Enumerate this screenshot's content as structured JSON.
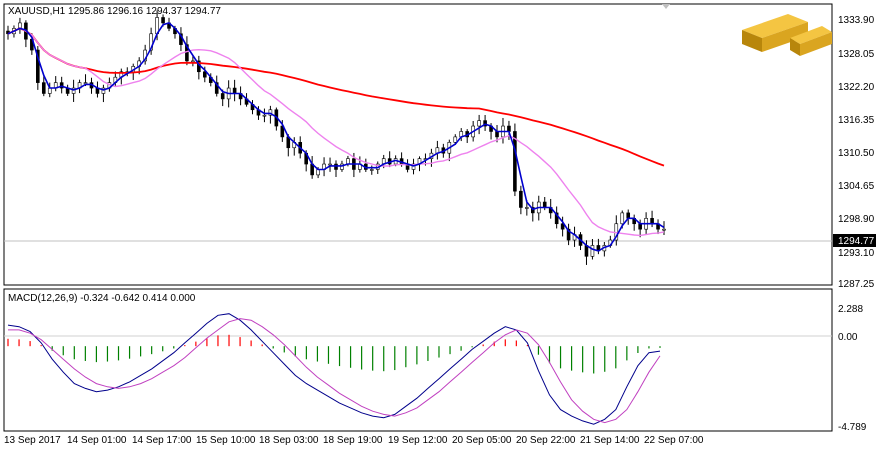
{
  "main": {
    "header": "XAUUSD,H1  1295.86 1296.16 1294.37 1294.77",
    "price_axis": [
      "1333.90",
      "1328.05",
      "1322.20",
      "1316.35",
      "1310.50",
      "1304.65",
      "1298.90",
      "1293.10",
      "1287.25"
    ],
    "current_price": "1294.77"
  },
  "macd": {
    "header": "MACD(12,26,9) -0.324 -0.642 0.414 0.000",
    "axis": [
      "2.288",
      "0.00",
      "-4.789"
    ]
  },
  "time_axis": [
    "13 Sep 2017",
    "14 Sep 01:00",
    "14 Sep 17:00",
    "15 Sep 10:00",
    "18 Sep 03:00",
    "18 Sep 19:00",
    "19 Sep 12:00",
    "20 Sep 05:00",
    "20 Sep 22:00",
    "21 Sep 14:00",
    "22 Sep 07:00"
  ],
  "logo": "gold-bars-icon",
  "colors": {
    "ma_slow": "#ff0000",
    "ma_mid": "#ee82ee",
    "ma_fast": "#0000cd",
    "macd_line": "#00008b",
    "signal_line": "#c040c0",
    "hist_pos": "#ff0000",
    "hist_neg": "#008000"
  },
  "chart_data": [
    {
      "type": "candlestick",
      "symbol": "XAUUSD",
      "timeframe": "H1",
      "ylim": [
        1284.9,
        1336.3
      ],
      "close_series": [
        1331,
        1332,
        1333,
        1330,
        1328,
        1322,
        1320,
        1321,
        1322,
        1321,
        1320,
        1321,
        1322,
        1322,
        1321,
        1320,
        1321,
        1322,
        1323,
        1324,
        1324,
        1325,
        1326,
        1328,
        1331,
        1334,
        1333,
        1332,
        1331,
        1329,
        1326,
        1326,
        1324,
        1323,
        1322,
        1320,
        1319,
        1321,
        1320,
        1319,
        1318,
        1317,
        1316,
        1316,
        1317,
        1314,
        1312,
        1310,
        1311,
        1309,
        1307,
        1305,
        1306,
        1307,
        1307,
        1306,
        1307,
        1308,
        1306,
        1307,
        1306,
        1306,
        1307,
        1308,
        1307,
        1308,
        1307,
        1306,
        1307,
        1308,
        1308,
        1309,
        1310,
        1309,
        1311,
        1312,
        1313,
        1312,
        1314,
        1315,
        1314,
        1313,
        1312,
        1314,
        1313,
        1302,
        1299,
        1299,
        1298,
        1300,
        1299,
        1298,
        1296,
        1295,
        1293,
        1294,
        1292,
        1290,
        1292,
        1291,
        1292,
        1293,
        1296,
        1298,
        1297,
        1296,
        1295,
        1297,
        1296,
        1295,
        1295
      ]
    },
    {
      "type": "line",
      "name": "MACD(12,26,9)",
      "ylim": [
        -4.789,
        2.288
      ],
      "macd_series": [
        1.3,
        1.2,
        0.9,
        0.2,
        -0.8,
        -1.6,
        -2.3,
        -2.6,
        -2.8,
        -2.7,
        -2.5,
        -2.2,
        -1.8,
        -1.4,
        -0.9,
        -0.4,
        0.2,
        0.8,
        1.4,
        1.9,
        2.0,
        1.6,
        1.0,
        0.3,
        -0.4,
        -1.1,
        -1.8,
        -2.3,
        -2.7,
        -3.1,
        -3.5,
        -3.8,
        -4.1,
        -4.3,
        -4.4,
        -4.2,
        -3.7,
        -3.2,
        -2.6,
        -2.0,
        -1.4,
        -0.8,
        -0.2,
        0.3,
        0.8,
        1.2,
        1.0,
        0.2,
        -1.5,
        -3.0,
        -3.9,
        -4.3,
        -4.6,
        -4.8,
        -4.5,
        -3.9,
        -2.5,
        -1.2,
        -0.4,
        -0.3
      ],
      "signal_series": [
        1.0,
        1.0,
        0.8,
        0.4,
        -0.2,
        -0.8,
        -1.4,
        -1.9,
        -2.3,
        -2.5,
        -2.6,
        -2.5,
        -2.3,
        -2.0,
        -1.6,
        -1.2,
        -0.7,
        -0.1,
        0.5,
        1.0,
        1.5,
        1.7,
        1.6,
        1.2,
        0.7,
        0.1,
        -0.6,
        -1.3,
        -1.9,
        -2.4,
        -2.9,
        -3.3,
        -3.7,
        -4.0,
        -4.2,
        -4.3,
        -4.1,
        -3.8,
        -3.3,
        -2.8,
        -2.2,
        -1.6,
        -1.0,
        -0.4,
        0.2,
        0.7,
        1.0,
        0.8,
        0.1,
        -1.0,
        -2.2,
        -3.3,
        -4.0,
        -4.5,
        -4.7,
        -4.5,
        -3.9,
        -2.8,
        -1.6,
        -0.6
      ]
    }
  ]
}
